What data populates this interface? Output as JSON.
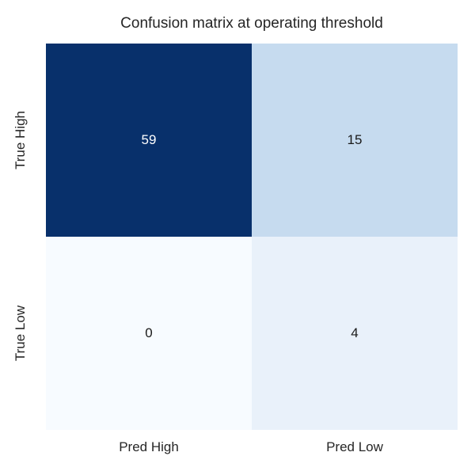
{
  "title": "Confusion matrix at operating threshold",
  "colors": {
    "background": "#ffffff",
    "title_text": "#262626",
    "tick_text": "#262626",
    "annot_light": "#ffffff",
    "annot_dark": "#1a1a1a"
  },
  "chart_data": {
    "type": "heatmap",
    "title": "Confusion matrix at operating threshold",
    "x_categories": [
      "Pred High",
      "Pred Low"
    ],
    "y_categories": [
      "True High",
      "True Low"
    ],
    "values": [
      [
        59,
        15
      ],
      [
        0,
        4
      ]
    ],
    "colormap": "Blues",
    "vmin": 0,
    "vmax": 59,
    "legend": "none",
    "grid": false,
    "colorbar": false,
    "cells": [
      {
        "row": "True High",
        "col": "Pred High",
        "value": "59",
        "bg": "#08306b",
        "text_color": "#ffffff"
      },
      {
        "row": "True High",
        "col": "Pred Low",
        "value": "15",
        "bg": "#c6dbef",
        "text_color": "#1a1a1a"
      },
      {
        "row": "True Low",
        "col": "Pred High",
        "value": "0",
        "bg": "#f7fbff",
        "text_color": "#1a1a1a"
      },
      {
        "row": "True Low",
        "col": "Pred Low",
        "value": "4",
        "bg": "#e9f1fa",
        "text_color": "#1a1a1a"
      }
    ]
  }
}
